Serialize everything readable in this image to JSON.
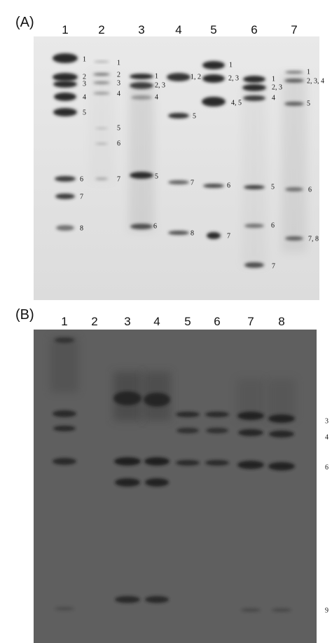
{
  "panel_a": {
    "label": "(A)",
    "lanes": [
      "1",
      "2",
      "3",
      "4",
      "5",
      "6",
      "7"
    ],
    "band_labels": [
      [
        "1",
        "2",
        "3",
        "4",
        "5",
        "6",
        "7",
        "8"
      ],
      [
        "1",
        "2",
        "3",
        "4",
        "5",
        "6",
        "7"
      ],
      [
        "1",
        "2, 3",
        "4",
        "5",
        "6"
      ],
      [
        "1, 2",
        "5",
        "7",
        "8"
      ],
      [
        "1",
        "2, 3",
        "4, 5",
        "6",
        "7"
      ],
      [
        "1",
        "2, 3",
        "4",
        "5",
        "6",
        "7"
      ],
      [
        "1",
        "2, 3, 4",
        "5",
        "6",
        "7, 8"
      ]
    ]
  },
  "panel_b": {
    "label": "(B)",
    "lanes": [
      "1",
      "2",
      "3",
      "4",
      "5",
      "6",
      "7",
      "8"
    ],
    "band_labels": [
      "3",
      "4",
      "6",
      "9"
    ]
  }
}
